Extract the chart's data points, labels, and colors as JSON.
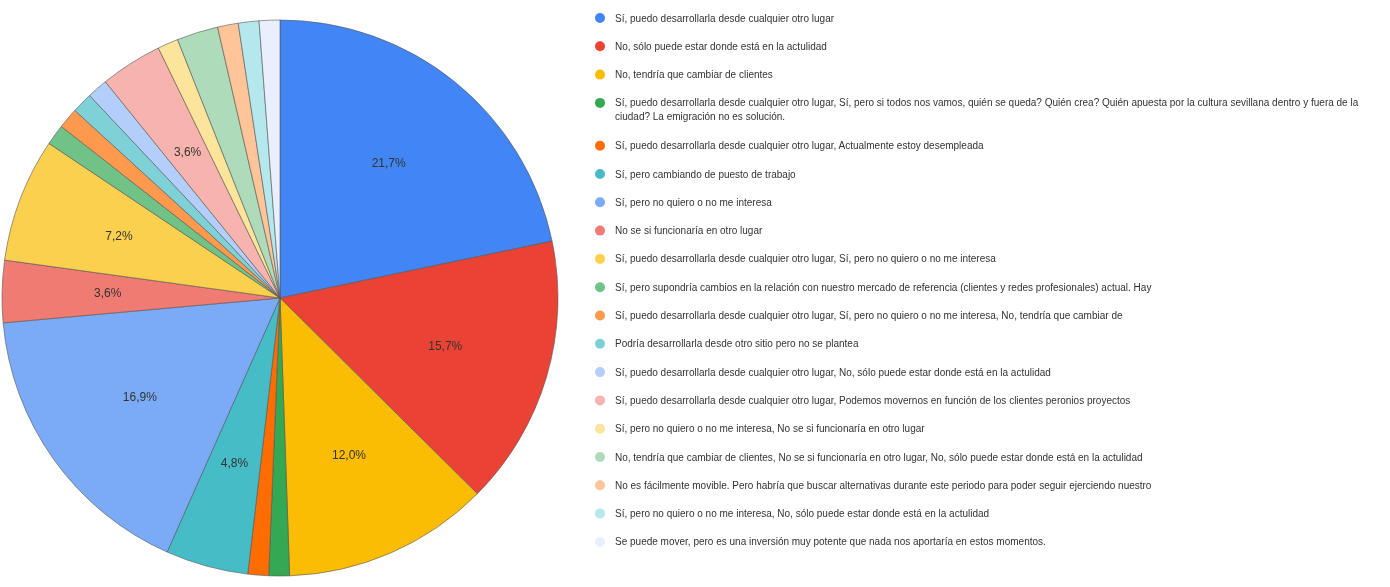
{
  "chart_data": {
    "type": "pie",
    "legend": "right",
    "categories": [
      "Sí, puedo desarrollarla desde cualquier otro lugar",
      "No, sólo puede estar donde está en la actulidad",
      "No, tendría que cambiar de clientes",
      "Sí, puedo desarrollarla desde cualquier otro lugar, Sí, pero si todos nos vamos, quién se queda? Quién crea? Quién apuesta por la cultura sevillana dentro y fuera de la ciudad? La emigración no es solución.",
      "Sí, puedo desarrollarla desde cualquier otro lugar, Actualmente estoy desempleada",
      "Sí, pero cambiando de puesto de trabajo",
      "Sí, pero no quiero o no me interesa",
      "No se si funcionaría en otro lugar",
      "Sí, puedo desarrollarla desde cualquier otro lugar, Sí, pero no quiero o no me interesa",
      "Sí, pero supondría cambios en la relación con nuestro mercado de referencia (clientes y redes profesionales) actual. Hay",
      "Sí, puedo desarrollarla desde cualquier otro lugar, Sí, pero no quiero o no me interesa, No, tendría que cambiar de",
      "Podría desarrollarla desde otro sitio pero no se plantea",
      "Sí, puedo desarrollarla desde cualquier otro lugar, No, sólo puede estar donde está en la actulidad",
      "Sí, puedo desarrollarla desde cualquier otro lugar, Podemos movernos en función de los clientes peronios proyectos",
      "Sí, pero no quiero o no me interesa, No se si funcionaría en otro lugar",
      "No, tendría que cambiar de clientes, No se si funcionaría en otro lugar, No, sólo puede estar donde está en la actulidad",
      "No es fácilmente movible. Pero habría que buscar alternativas durante este periodo para poder seguir ejerciendo nuestro",
      "Sí, pero no quiero o no me interesa, No, sólo puede estar donde está en la actulidad",
      "Se puede mover, pero es una inversión muy potente que nada nos aportaría en estos momentos."
    ],
    "values": [
      21.7,
      15.7,
      12.0,
      1.2,
      1.2,
      4.8,
      16.9,
      3.6,
      7.2,
      1.2,
      1.2,
      1.2,
      1.2,
      3.6,
      1.2,
      2.4,
      1.2,
      1.2,
      1.2
    ],
    "value_labels": [
      "21,7%",
      "15,7%",
      "12,0%",
      null,
      null,
      "4,8%",
      "16,9%",
      "3,6%",
      "7,2%",
      null,
      null,
      null,
      null,
      "3,6%",
      null,
      null,
      null,
      null,
      null
    ],
    "colors": [
      "#4285f4",
      "#ea4335",
      "#fbbc04",
      "#34a853",
      "#ff6d01",
      "#46bdc6",
      "#7baaf7",
      "#f07b72",
      "#fcd04f",
      "#71c287",
      "#ff994d",
      "#7ed1d7",
      "#b3cefb",
      "#f7b4ae",
      "#fde49b",
      "#aedcba",
      "#ffc599",
      "#b5e8ec",
      "#e8f0fe"
    ]
  }
}
